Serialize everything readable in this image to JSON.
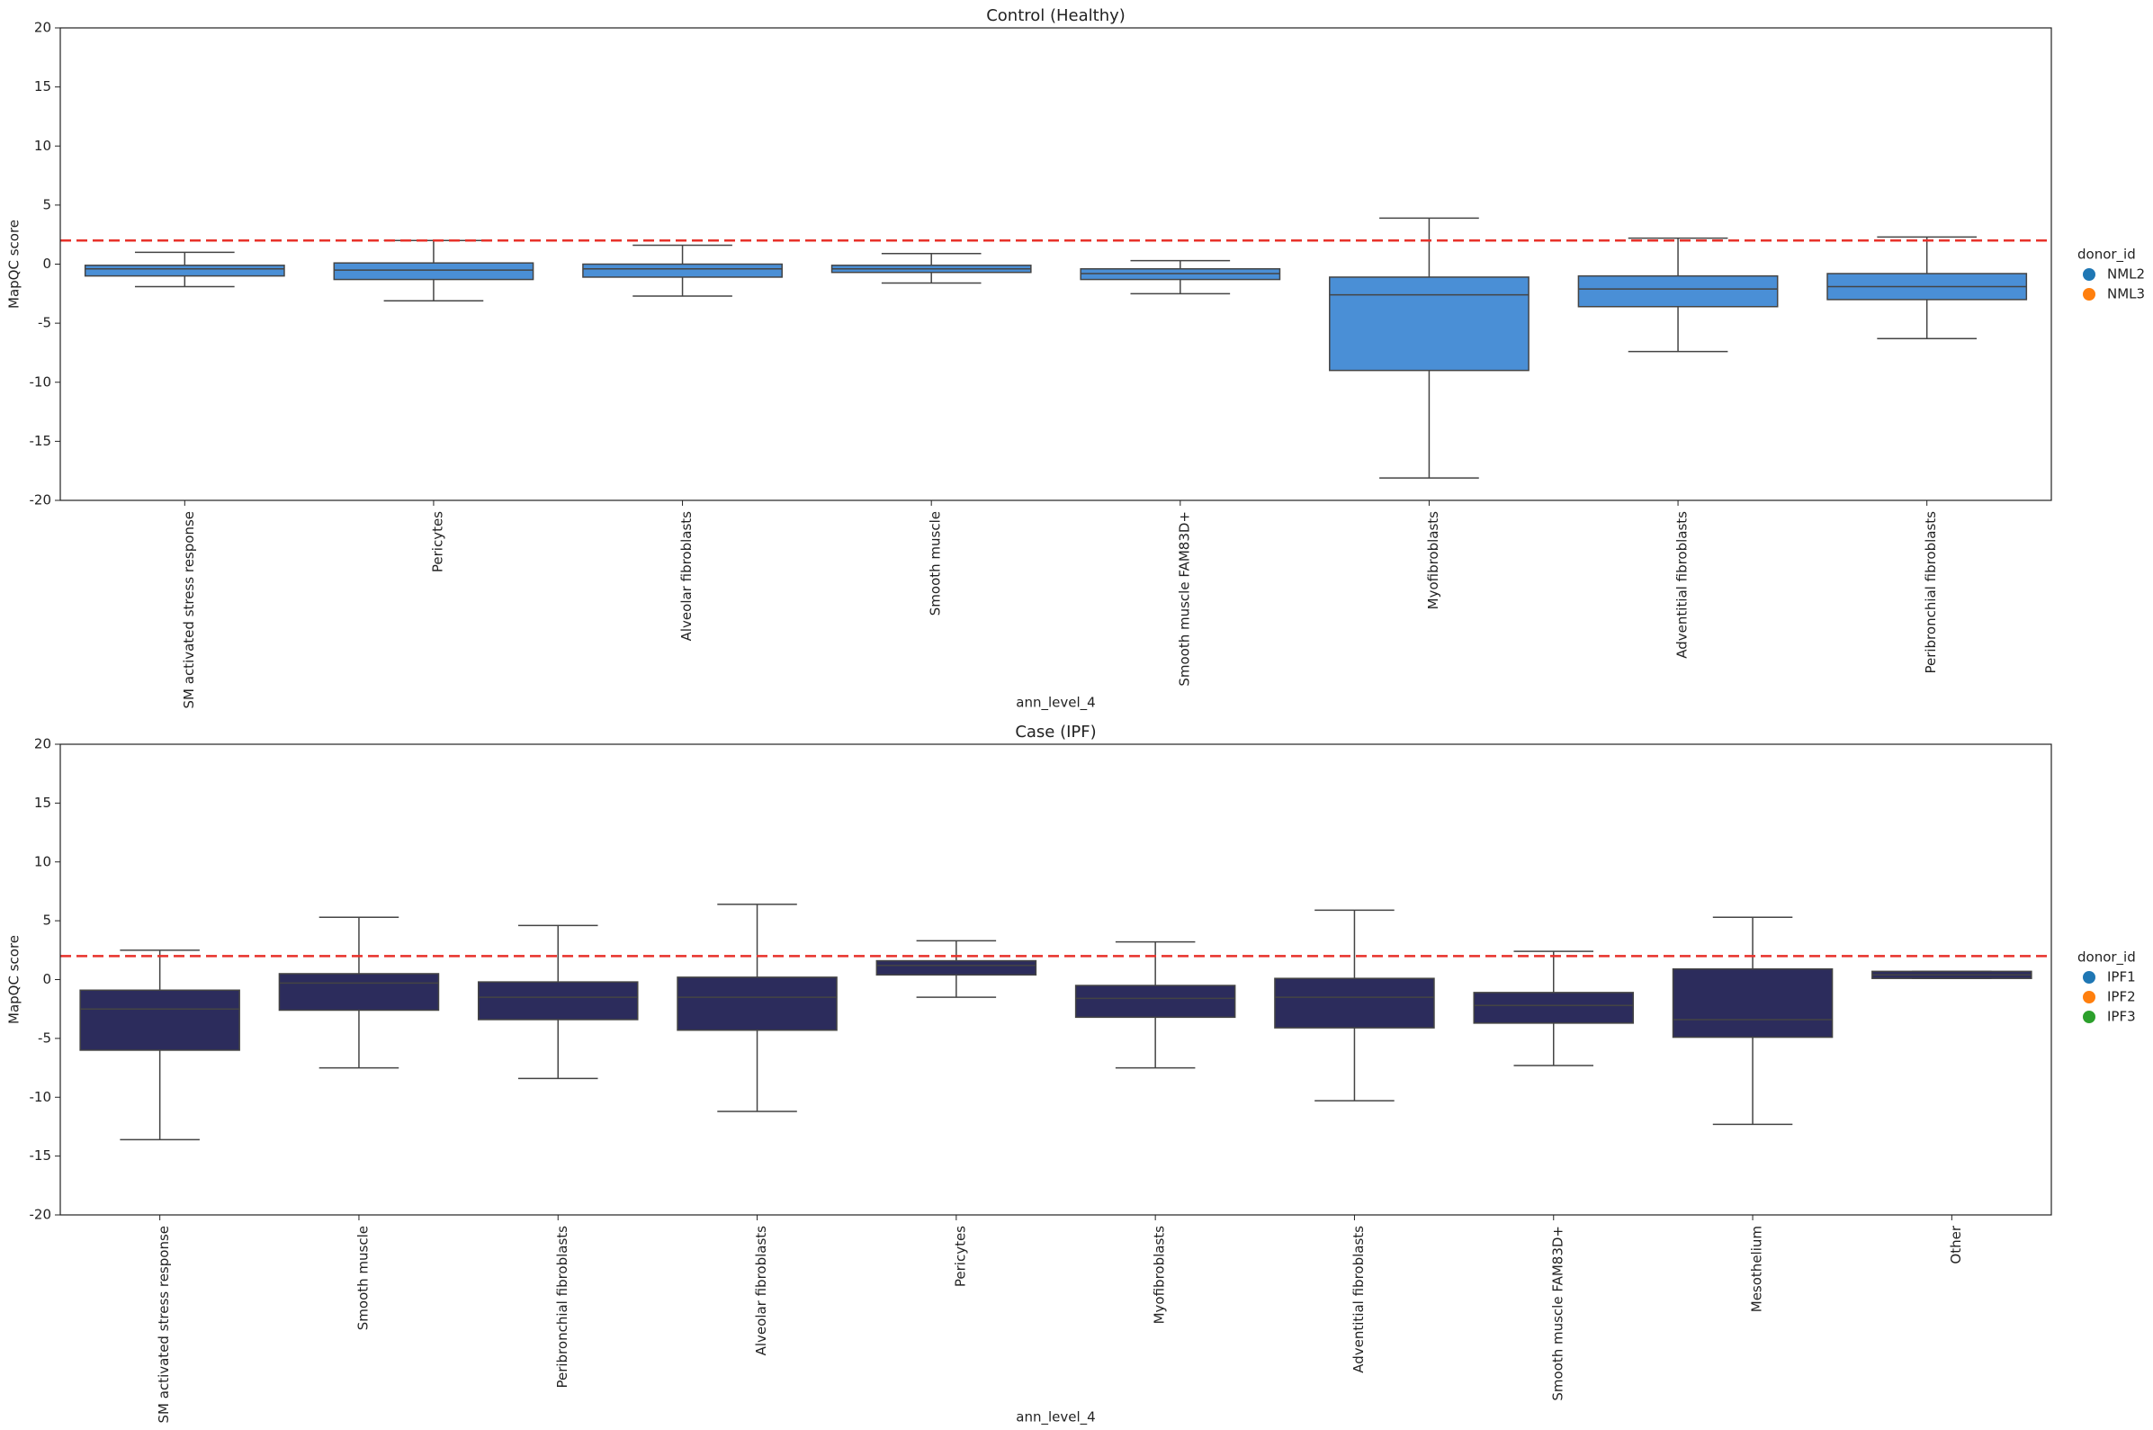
{
  "chart_data": [
    {
      "type": "box",
      "title": "Control (Healthy)",
      "xlabel": "ann_level_4",
      "ylabel": "MapQC score",
      "categories": [
        "SM activated stress response",
        "Pericytes",
        "Alveolar fibroblasts",
        "Smooth muscle",
        "Smooth muscle FAM83D+",
        "Myofibroblasts",
        "Adventitial fibroblasts",
        "Peribronchial fibroblasts"
      ],
      "boxes": [
        {
          "whislo": -1.9,
          "q1": -1.0,
          "median": -0.4,
          "q3": -0.1,
          "whishi": 1.0
        },
        {
          "whislo": -3.1,
          "q1": -1.3,
          "median": -0.5,
          "q3": 0.1,
          "whishi": 2.0
        },
        {
          "whislo": -2.7,
          "q1": -1.1,
          "median": -0.4,
          "q3": 0.0,
          "whishi": 1.6
        },
        {
          "whislo": -1.6,
          "q1": -0.7,
          "median": -0.4,
          "q3": -0.1,
          "whishi": 0.9
        },
        {
          "whislo": -2.5,
          "q1": -1.3,
          "median": -0.8,
          "q3": -0.4,
          "whishi": 0.3
        },
        {
          "whislo": -18.1,
          "q1": -9.0,
          "median": -2.6,
          "q3": -1.1,
          "whishi": 3.9
        },
        {
          "whislo": -7.4,
          "q1": -3.6,
          "median": -2.1,
          "q3": -1.0,
          "whishi": 2.2
        },
        {
          "whislo": -6.3,
          "q1": -3.0,
          "median": -1.9,
          "q3": -0.8,
          "whishi": 2.3
        }
      ],
      "color": "#4a8fd6",
      "threshold": 2,
      "threshold_color": "#e8312a",
      "ylim": [
        -20,
        20
      ],
      "yticks": [
        -20,
        -15,
        -10,
        -5,
        0,
        5,
        10,
        15,
        20
      ],
      "legend": {
        "title": "donor_id",
        "entries": [
          {
            "name": "NML2",
            "color": "#1f77b4"
          },
          {
            "name": "NML3",
            "color": "#ff7f0e"
          }
        ]
      }
    },
    {
      "type": "box",
      "title": "Case (IPF)",
      "xlabel": "ann_level_4",
      "ylabel": "MapQC score",
      "categories": [
        "SM activated stress response",
        "Smooth muscle",
        "Peribronchial fibroblasts",
        "Alveolar fibroblasts",
        "Pericytes",
        "Myofibroblasts",
        "Adventitial fibroblasts",
        "Smooth muscle FAM83D+",
        "Mesothelium",
        "Other"
      ],
      "boxes": [
        {
          "whislo": -13.6,
          "q1": -6.0,
          "median": -2.5,
          "q3": -0.9,
          "whishi": 2.5
        },
        {
          "whislo": -7.5,
          "q1": -2.6,
          "median": -0.3,
          "q3": 0.5,
          "whishi": 5.3
        },
        {
          "whislo": -8.4,
          "q1": -3.4,
          "median": -1.5,
          "q3": -0.2,
          "whishi": 4.6
        },
        {
          "whislo": -11.2,
          "q1": -4.3,
          "median": -1.5,
          "q3": 0.2,
          "whishi": 6.4
        },
        {
          "whislo": -1.5,
          "q1": 0.4,
          "median": 1.2,
          "q3": 1.6,
          "whishi": 3.3
        },
        {
          "whislo": -7.5,
          "q1": -3.2,
          "median": -1.6,
          "q3": -0.5,
          "whishi": 3.2
        },
        {
          "whislo": -10.3,
          "q1": -4.1,
          "median": -1.5,
          "q3": 0.1,
          "whishi": 5.9
        },
        {
          "whislo": -7.3,
          "q1": -3.7,
          "median": -2.2,
          "q3": -1.1,
          "whishi": 2.4
        },
        {
          "whislo": -12.3,
          "q1": -4.9,
          "median": -3.4,
          "q3": 0.9,
          "whishi": 5.3
        },
        {
          "whislo": 0.1,
          "q1": 0.1,
          "median": 0.4,
          "q3": 0.7,
          "whishi": 0.7
        }
      ],
      "color": "#2c2c5c",
      "threshold": 2,
      "threshold_color": "#e8312a",
      "ylim": [
        -20,
        20
      ],
      "yticks": [
        -20,
        -15,
        -10,
        -5,
        0,
        5,
        10,
        15,
        20
      ],
      "legend": {
        "title": "donor_id",
        "entries": [
          {
            "name": "IPF1",
            "color": "#1f77b4"
          },
          {
            "name": "IPF2",
            "color": "#ff7f0e"
          },
          {
            "name": "IPF3",
            "color": "#2ca02c"
          }
        ]
      }
    }
  ]
}
